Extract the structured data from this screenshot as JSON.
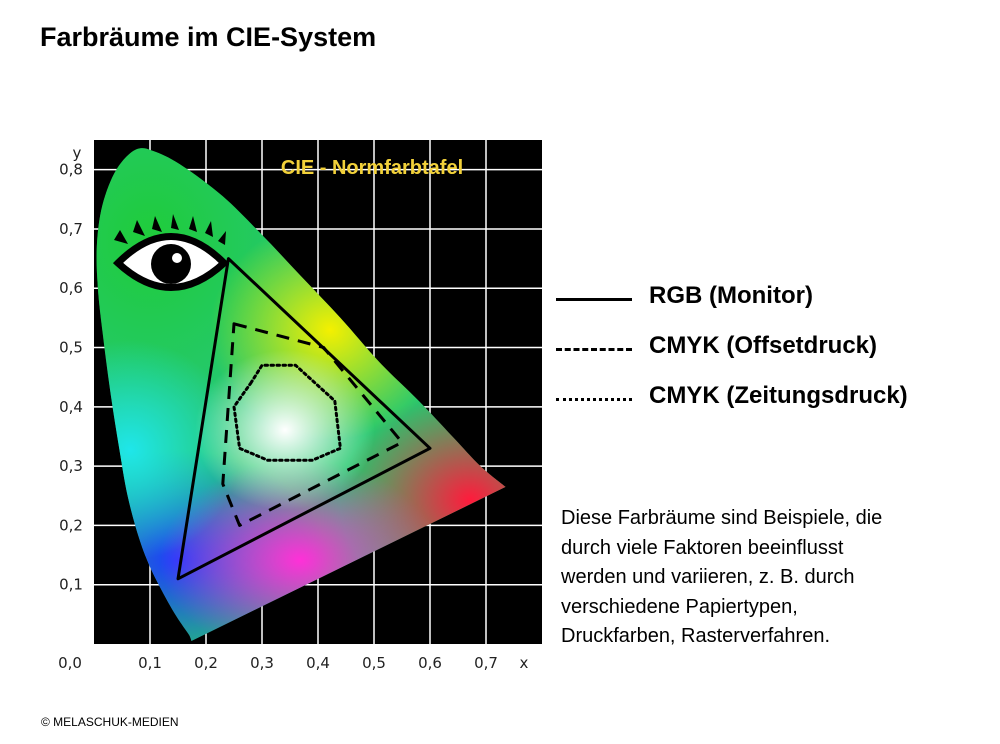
{
  "page": {
    "title": "Farbräume im CIE-System",
    "copyright": "© MELASCHUK-MEDIEN"
  },
  "legend": {
    "items": [
      {
        "label": "RGB (Monitor)",
        "style": "solid"
      },
      {
        "label": "CMYK (Offsetdruck)",
        "style": "dashed"
      },
      {
        "label": "CMYK (Zeitungsdruck)",
        "style": "dotted"
      }
    ]
  },
  "note": {
    "lines": [
      "Diese Farbräume sind Beispiele, die",
      "durch viele Faktoren beeinflusst",
      "werden und variieren, z. B. durch",
      "verschiedene Papiertypen,",
      "Druckfarben, Rasterverfahren."
    ]
  },
  "chart_data": {
    "type": "scatter",
    "title": "CIE - Normfarbtafel",
    "xlabel": "x",
    "ylabel": "y",
    "xlim": [
      0,
      0.8
    ],
    "ylim": [
      0,
      0.85
    ],
    "x_ticks": [
      "0,1",
      "0,2",
      "0,3",
      "0,4",
      "0,5",
      "0,6",
      "0,7"
    ],
    "y_ticks": [
      "0,1",
      "0,2",
      "0,3",
      "0,4",
      "0,5",
      "0,6",
      "0,7",
      "0,8"
    ],
    "origin_label": "0,0",
    "grid": true,
    "colors": {
      "background": "#000000",
      "grid": "#ffffff",
      "title": "#f2d13a"
    },
    "spectral_locus": [
      [
        0.174,
        0.005
      ],
      [
        0.17,
        0.015
      ],
      [
        0.159,
        0.03
      ],
      [
        0.145,
        0.05
      ],
      [
        0.124,
        0.085
      ],
      [
        0.1,
        0.13
      ],
      [
        0.08,
        0.18
      ],
      [
        0.06,
        0.25
      ],
      [
        0.045,
        0.33
      ],
      [
        0.03,
        0.42
      ],
      [
        0.016,
        0.52
      ],
      [
        0.007,
        0.6
      ],
      [
        0.005,
        0.67
      ],
      [
        0.015,
        0.74
      ],
      [
        0.04,
        0.8
      ],
      [
        0.075,
        0.834
      ],
      [
        0.11,
        0.83
      ],
      [
        0.16,
        0.805
      ],
      [
        0.23,
        0.755
      ],
      [
        0.3,
        0.69
      ],
      [
        0.37,
        0.62
      ],
      [
        0.44,
        0.55
      ],
      [
        0.51,
        0.475
      ],
      [
        0.58,
        0.41
      ],
      [
        0.64,
        0.35
      ],
      [
        0.69,
        0.3
      ],
      [
        0.735,
        0.265
      ]
    ],
    "series": [
      {
        "name": "RGB (Monitor)",
        "style": "solid",
        "points": [
          [
            0.24,
            0.65
          ],
          [
            0.6,
            0.33
          ],
          [
            0.15,
            0.11
          ]
        ]
      },
      {
        "name": "CMYK (Offsetdruck)",
        "style": "dashed",
        "points": [
          [
            0.25,
            0.54
          ],
          [
            0.41,
            0.5
          ],
          [
            0.55,
            0.34
          ],
          [
            0.26,
            0.2
          ],
          [
            0.23,
            0.27
          ]
        ]
      },
      {
        "name": "CMYK (Zeitungsdruck)",
        "style": "dotted",
        "points": [
          [
            0.28,
            0.44
          ],
          [
            0.3,
            0.47
          ],
          [
            0.36,
            0.47
          ],
          [
            0.43,
            0.41
          ],
          [
            0.44,
            0.33
          ],
          [
            0.39,
            0.31
          ],
          [
            0.31,
            0.31
          ],
          [
            0.26,
            0.33
          ],
          [
            0.25,
            0.4
          ]
        ]
      }
    ],
    "icon": "eye-icon"
  }
}
